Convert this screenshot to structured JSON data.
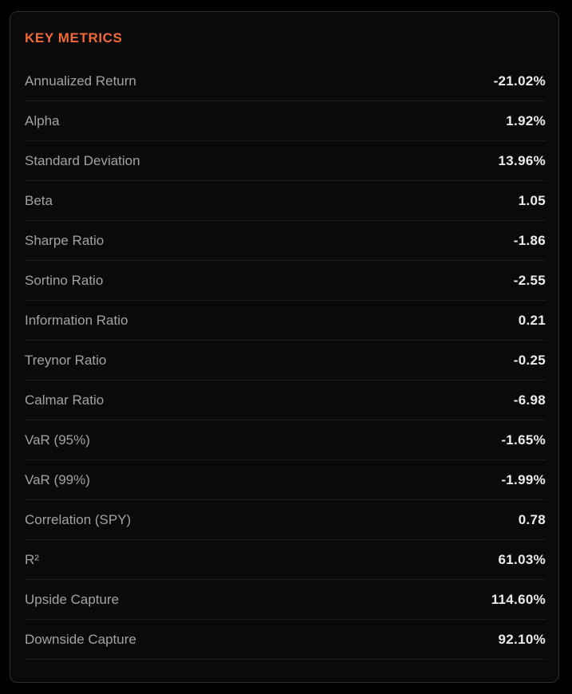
{
  "panel": {
    "title": "KEY METRICS",
    "accent_color": "#f0693a",
    "metrics": [
      {
        "label": "Annualized Return",
        "value": "-21.02%"
      },
      {
        "label": "Alpha",
        "value": "1.92%"
      },
      {
        "label": "Standard Deviation",
        "value": "13.96%"
      },
      {
        "label": "Beta",
        "value": "1.05"
      },
      {
        "label": "Sharpe Ratio",
        "value": "-1.86"
      },
      {
        "label": "Sortino Ratio",
        "value": "-2.55"
      },
      {
        "label": "Information Ratio",
        "value": "0.21"
      },
      {
        "label": "Treynor Ratio",
        "value": "-0.25"
      },
      {
        "label": "Calmar Ratio",
        "value": "-6.98"
      },
      {
        "label": "VaR (95%)",
        "value": "-1.65%"
      },
      {
        "label": "VaR (99%)",
        "value": "-1.99%"
      },
      {
        "label": "Correlation (SPY)",
        "value": "0.78"
      },
      {
        "label": "R²",
        "value": "61.03%"
      },
      {
        "label": "Upside Capture",
        "value": "114.60%"
      },
      {
        "label": "Downside Capture",
        "value": "92.10%"
      }
    ]
  }
}
